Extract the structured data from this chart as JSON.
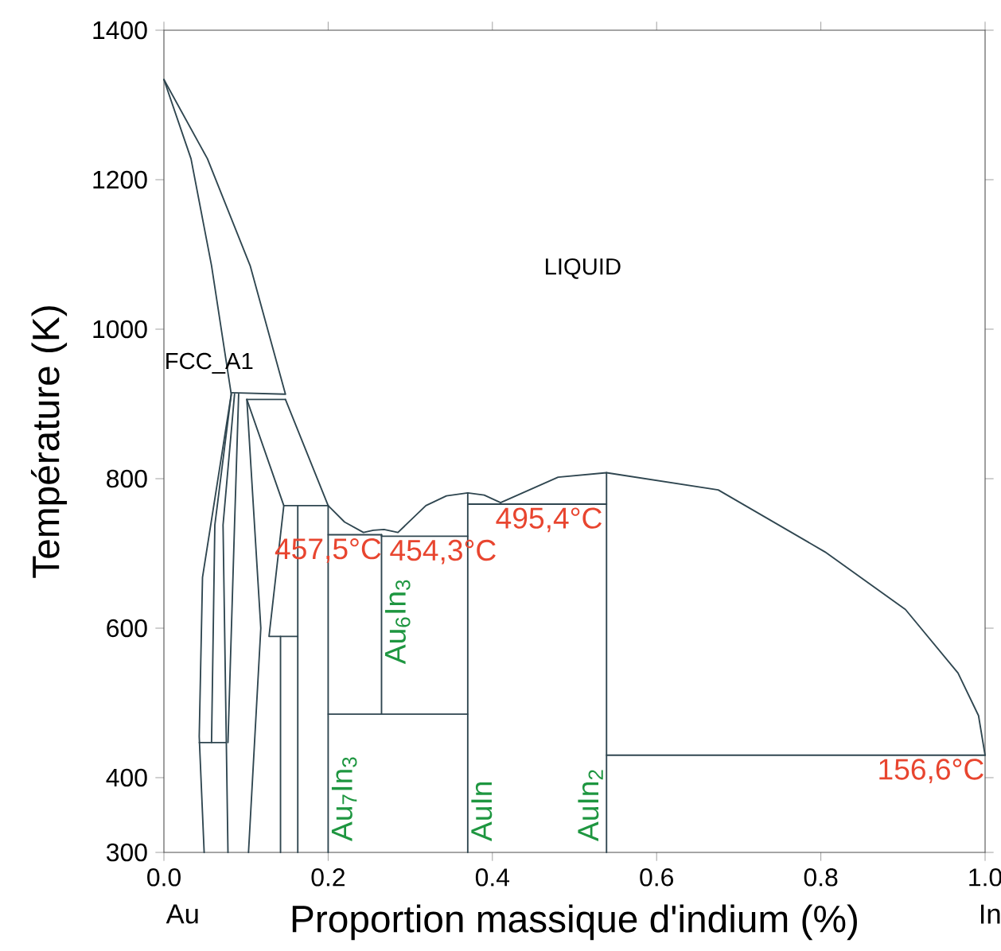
{
  "chart_data": {
    "type": "line",
    "xlabel": "Proportion massique d'indium (%)",
    "ylabel": "Température (K)",
    "xlim": [
      0,
      1
    ],
    "ylim": [
      300,
      1400
    ],
    "xticks": [
      {
        "value": 0,
        "label": "0.0"
      },
      0.2,
      0.4,
      0.6,
      0.8,
      {
        "value": 1,
        "label": "1.0"
      }
    ],
    "yticks": [
      300,
      400,
      600,
      800,
      1000,
      1200,
      1400
    ],
    "series": [
      {
        "color": "#2f4650",
        "x": [
          0.049,
          0.043,
          0.047,
          0.082,
          0.058,
          0.033,
          0
        ],
        "values": [
          300,
          455,
          668,
          913,
          1085,
          1228,
          1334
        ]
      },
      {
        "color": "#2f4650",
        "x": [
          0,
          0.053,
          0.105,
          0.148,
          0.082
        ],
        "values": [
          1334,
          1228,
          1085,
          913,
          915
        ]
      },
      {
        "color": "#2f4650",
        "x": [
          0.101,
          0.148
        ],
        "values": [
          906,
          906
        ]
      },
      {
        "color": "#2f4650",
        "x": [
          0.148,
          0.2,
          0.22,
          0.243,
          0.255,
          0.268,
          0.285,
          0.319,
          0.344,
          0.37,
          0.39,
          0.41,
          0.48,
          0.539,
          0.675,
          0.805,
          0.903,
          0.967,
          0.992,
          1.0
        ],
        "values": [
          906,
          764,
          742,
          728,
          731,
          732,
          728,
          764,
          777,
          781,
          778,
          768,
          802,
          808,
          785,
          702,
          625,
          540,
          483,
          430
        ]
      },
      {
        "color": "#2f4650",
        "x": [
          0.082,
          0.062,
          0.058
        ],
        "values": [
          913,
          738,
          447
        ]
      },
      {
        "color": "#2f4650",
        "x": [
          0.086,
          0.072,
          0.076,
          0.078
        ],
        "values": [
          913,
          738,
          447,
          300
        ]
      },
      {
        "color": "#2f4650",
        "x": [
          0.091,
          0.086,
          0.078
        ],
        "values": [
          913,
          738,
          447
        ]
      },
      {
        "color": "#2f4650",
        "x": [
          0.043,
          0.076
        ],
        "values": [
          447,
          447
        ]
      },
      {
        "color": "#2f4650",
        "x": [
          0.101,
          0.146,
          0.128,
          0.163
        ],
        "values": [
          906,
          764,
          589,
          589
        ]
      },
      {
        "color": "#2f4650",
        "x": [
          0.101,
          0.118,
          0.103
        ],
        "values": [
          906,
          600,
          300
        ]
      },
      {
        "color": "#2f4650",
        "x": [
          0.142,
          0.142
        ],
        "values": [
          300,
          589
        ]
      },
      {
        "color": "#2f4650",
        "x": [
          0.163,
          0.163
        ],
        "values": [
          300,
          764
        ]
      },
      {
        "color": "#2f4650",
        "x": [
          0.146,
          0.2
        ],
        "values": [
          764,
          764
        ]
      },
      {
        "color": "#2f4650",
        "x": [
          0.2,
          0.2
        ],
        "values": [
          300,
          764
        ]
      },
      {
        "color": "#2f4650",
        "x": [
          0.2,
          0.265,
          0.265,
          0.37
        ],
        "values": [
          725,
          725,
          723,
          723
        ]
      },
      {
        "color": "#2f4650",
        "x": [
          0.265,
          0.265
        ],
        "values": [
          485,
          725
        ]
      },
      {
        "color": "#2f4650",
        "x": [
          0.2,
          0.37
        ],
        "values": [
          485,
          485
        ]
      },
      {
        "color": "#2f4650",
        "x": [
          0.37,
          0.37
        ],
        "values": [
          300,
          781
        ]
      },
      {
        "color": "#2f4650",
        "x": [
          0.37,
          0.539
        ],
        "values": [
          766,
          766
        ]
      },
      {
        "color": "#2f4650",
        "x": [
          0.539,
          0.539
        ],
        "values": [
          300,
          808
        ]
      },
      {
        "color": "#2f4650",
        "x": [
          0.539,
          1.0
        ],
        "values": [
          430,
          430
        ]
      }
    ],
    "annotations": [
      "LIQUID",
      "FCC_A1",
      {
        "text": "457,5°C",
        "x": 0.2,
        "y": 725
      },
      {
        "text": "454,3°C",
        "x": 0.34,
        "y": 723
      },
      {
        "text": "495,4°C",
        "x": 0.469,
        "y": 766
      },
      {
        "text": "156,6°C",
        "x": 0.934,
        "y": 430
      },
      {
        "text": "Au$_{7}$In$_{3}$",
        "x": 0.2,
        "y": 310
      },
      {
        "text": "Au$_{6}$In$_{3}$",
        "x": 0.265,
        "y": 547
      },
      {
        "text": "AuIn",
        "x": 0.37,
        "y": 310
      },
      {
        "text": "AuIn$_{2}$",
        "x": 0.539,
        "y": 310
      },
      "Au",
      "In"
    ]
  }
}
